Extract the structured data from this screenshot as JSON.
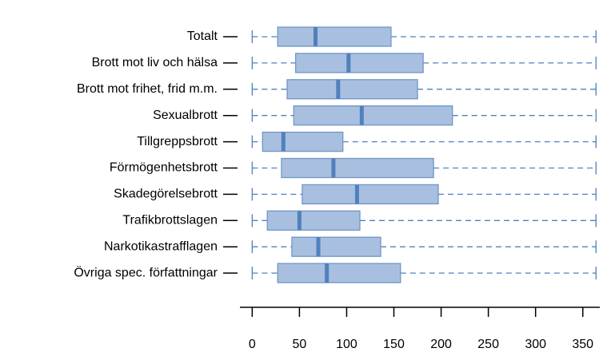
{
  "chart_data": {
    "type": "box",
    "orientation": "horizontal",
    "categories": [
      "Totalt",
      "Brott mot liv och hälsa",
      "Brott mot frihet, frid m.m.",
      "Sexualbrott",
      "Tillgreppsbrott",
      "Förmögenhetsbrott",
      "Skadegörelsebrott",
      "Trafikbrottslagen",
      "Narkotikastrafflagen",
      "Övriga spec. författningar"
    ],
    "boxes": [
      {
        "min": 0,
        "q1": 27,
        "median": 67,
        "q3": 147,
        "max": 364
      },
      {
        "min": 0,
        "q1": 46,
        "median": 102,
        "q3": 181,
        "max": 364
      },
      {
        "min": 0,
        "q1": 37,
        "median": 91,
        "q3": 175,
        "max": 364
      },
      {
        "min": 0,
        "q1": 44,
        "median": 116,
        "q3": 212,
        "max": 364
      },
      {
        "min": 0,
        "q1": 11,
        "median": 33,
        "q3": 96,
        "max": 364
      },
      {
        "min": 0,
        "q1": 31,
        "median": 86,
        "q3": 192,
        "max": 364
      },
      {
        "min": 0,
        "q1": 53,
        "median": 111,
        "q3": 197,
        "max": 364
      },
      {
        "min": 0,
        "q1": 16,
        "median": 50,
        "q3": 114,
        "max": 364
      },
      {
        "min": 0,
        "q1": 42,
        "median": 70,
        "q3": 136,
        "max": 364
      },
      {
        "min": 0,
        "q1": 27,
        "median": 79,
        "q3": 157,
        "max": 364
      }
    ],
    "box_color": "#a9bfdf",
    "edge_color": "#7096c8",
    "median_color": "#4f81bd",
    "xlim": [
      -13,
      368
    ],
    "xticks": [
      0,
      50,
      100,
      150,
      200,
      250,
      300,
      350
    ]
  }
}
